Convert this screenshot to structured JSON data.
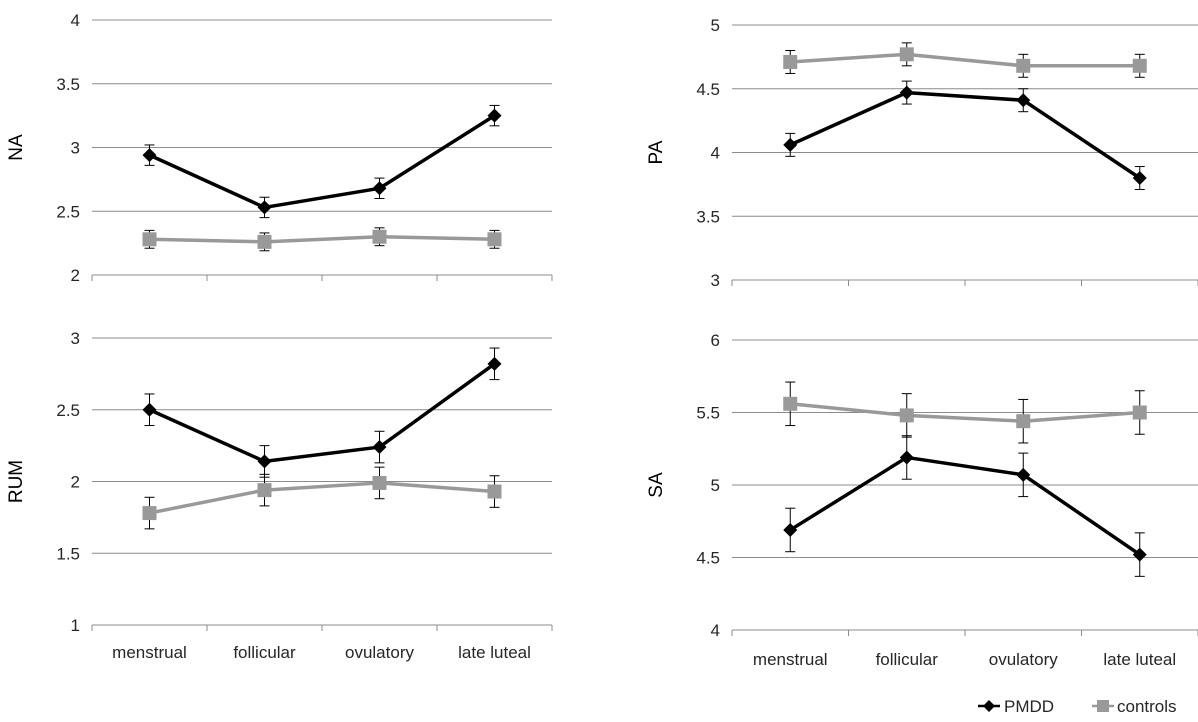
{
  "chart_data": [
    {
      "type": "line",
      "ylabel": "NA",
      "ylim": [
        2,
        4
      ],
      "yticks": [
        "2",
        "2.5",
        "3",
        "3.5",
        "4"
      ],
      "categories": [
        "menstrual",
        "follicular",
        "ovulatory",
        "late luteal"
      ],
      "show_categories": false,
      "series": [
        {
          "name": "PMDD",
          "values": [
            2.94,
            2.53,
            2.68,
            3.25
          ],
          "errors": [
            0.08,
            0.08,
            0.08,
            0.08
          ],
          "color": "#000000"
        },
        {
          "name": "controls",
          "values": [
            2.28,
            2.26,
            2.3,
            2.28
          ],
          "errors": [
            0.07,
            0.07,
            0.07,
            0.07
          ],
          "color": "#999999"
        }
      ]
    },
    {
      "type": "line",
      "ylabel": "PA",
      "ylim": [
        3,
        5
      ],
      "yticks": [
        "3",
        "3.5",
        "4",
        "4.5",
        "5"
      ],
      "categories": [
        "menstrual",
        "follicular",
        "ovulatory",
        "late luteal"
      ],
      "show_categories": false,
      "series": [
        {
          "name": "PMDD",
          "values": [
            4.06,
            4.47,
            4.41,
            3.8
          ],
          "errors": [
            0.09,
            0.09,
            0.09,
            0.09
          ],
          "color": "#000000"
        },
        {
          "name": "controls",
          "values": [
            4.71,
            4.77,
            4.68,
            4.68
          ],
          "errors": [
            0.09,
            0.09,
            0.09,
            0.09
          ],
          "color": "#999999"
        }
      ]
    },
    {
      "type": "line",
      "ylabel": "RUM",
      "ylim": [
        1,
        3
      ],
      "yticks": [
        "1",
        "1.5",
        "2",
        "2.5",
        "3"
      ],
      "categories": [
        "menstrual",
        "follicular",
        "ovulatory",
        "late luteal"
      ],
      "show_categories": true,
      "series": [
        {
          "name": "PMDD",
          "values": [
            2.5,
            2.14,
            2.24,
            2.82
          ],
          "errors": [
            0.11,
            0.11,
            0.11,
            0.11
          ],
          "color": "#000000"
        },
        {
          "name": "controls",
          "values": [
            1.78,
            1.94,
            1.99,
            1.93
          ],
          "errors": [
            0.11,
            0.11,
            0.11,
            0.11
          ],
          "color": "#999999"
        }
      ]
    },
    {
      "type": "line",
      "ylabel": "SA",
      "ylim": [
        4,
        6
      ],
      "yticks": [
        "4",
        "4.5",
        "5",
        "5.5",
        "6"
      ],
      "categories": [
        "menstrual",
        "follicular",
        "ovulatory",
        "late luteal"
      ],
      "show_categories": true,
      "series": [
        {
          "name": "PMDD",
          "values": [
            4.69,
            5.19,
            5.07,
            4.52
          ],
          "errors": [
            0.15,
            0.15,
            0.15,
            0.15
          ],
          "color": "#000000"
        },
        {
          "name": "controls",
          "values": [
            5.56,
            5.48,
            5.44,
            5.5
          ],
          "errors": [
            0.15,
            0.15,
            0.15,
            0.15
          ],
          "color": "#999999"
        }
      ]
    }
  ],
  "legend": {
    "position": "bottom-right",
    "items": [
      {
        "label": "PMDD",
        "color": "#000000",
        "marker": "diamond"
      },
      {
        "label": "controls",
        "color": "#999999",
        "marker": "square"
      }
    ]
  }
}
